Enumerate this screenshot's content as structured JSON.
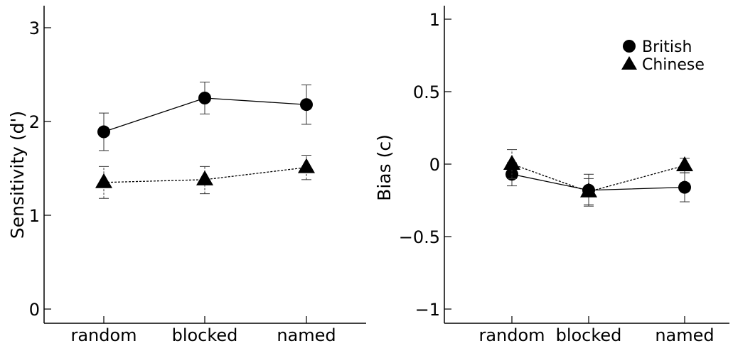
{
  "chart_data": [
    {
      "type": "line",
      "ylabel": "Sensitivity (d')",
      "xlabel": "",
      "categories": [
        "random",
        "blocked",
        "named"
      ],
      "ylim": [
        0,
        3
      ],
      "yticks": [
        0,
        1,
        2,
        3
      ],
      "series": [
        {
          "name": "British",
          "marker": "circle",
          "line_style": "solid",
          "values": [
            1.89,
            2.25,
            2.18
          ],
          "error_low": [
            1.69,
            2.08,
            1.97
          ],
          "error_high": [
            2.09,
            2.42,
            2.39
          ]
        },
        {
          "name": "Chinese",
          "marker": "triangle",
          "line_style": "dotted",
          "values": [
            1.35,
            1.38,
            1.51
          ],
          "error_low": [
            1.18,
            1.23,
            1.38
          ],
          "error_high": [
            1.52,
            1.52,
            1.64
          ]
        }
      ],
      "legend": "none"
    },
    {
      "type": "line",
      "ylabel": "Bias (c)",
      "xlabel": "",
      "categories": [
        "random",
        "blocked",
        "named"
      ],
      "ylim": [
        -1,
        1
      ],
      "yticks": [
        -1,
        -0.5,
        0,
        0.5,
        1
      ],
      "ytick_labels": [
        "−1",
        "−0.5",
        "0",
        "0.5",
        "1"
      ],
      "series": [
        {
          "name": "British",
          "marker": "circle",
          "line_style": "solid",
          "values": [
            -0.07,
            -0.18,
            -0.16
          ],
          "error_low": [
            -0.15,
            -0.28,
            -0.26
          ],
          "error_high": [
            0.01,
            -0.07,
            -0.06
          ]
        },
        {
          "name": "Chinese",
          "marker": "triangle",
          "line_style": "dotted",
          "values": [
            0.0,
            -0.19,
            -0.01
          ],
          "error_low": [
            -0.1,
            -0.29,
            -0.06
          ],
          "error_high": [
            0.1,
            -0.1,
            0.04
          ]
        }
      ],
      "legend": "top-right"
    }
  ]
}
